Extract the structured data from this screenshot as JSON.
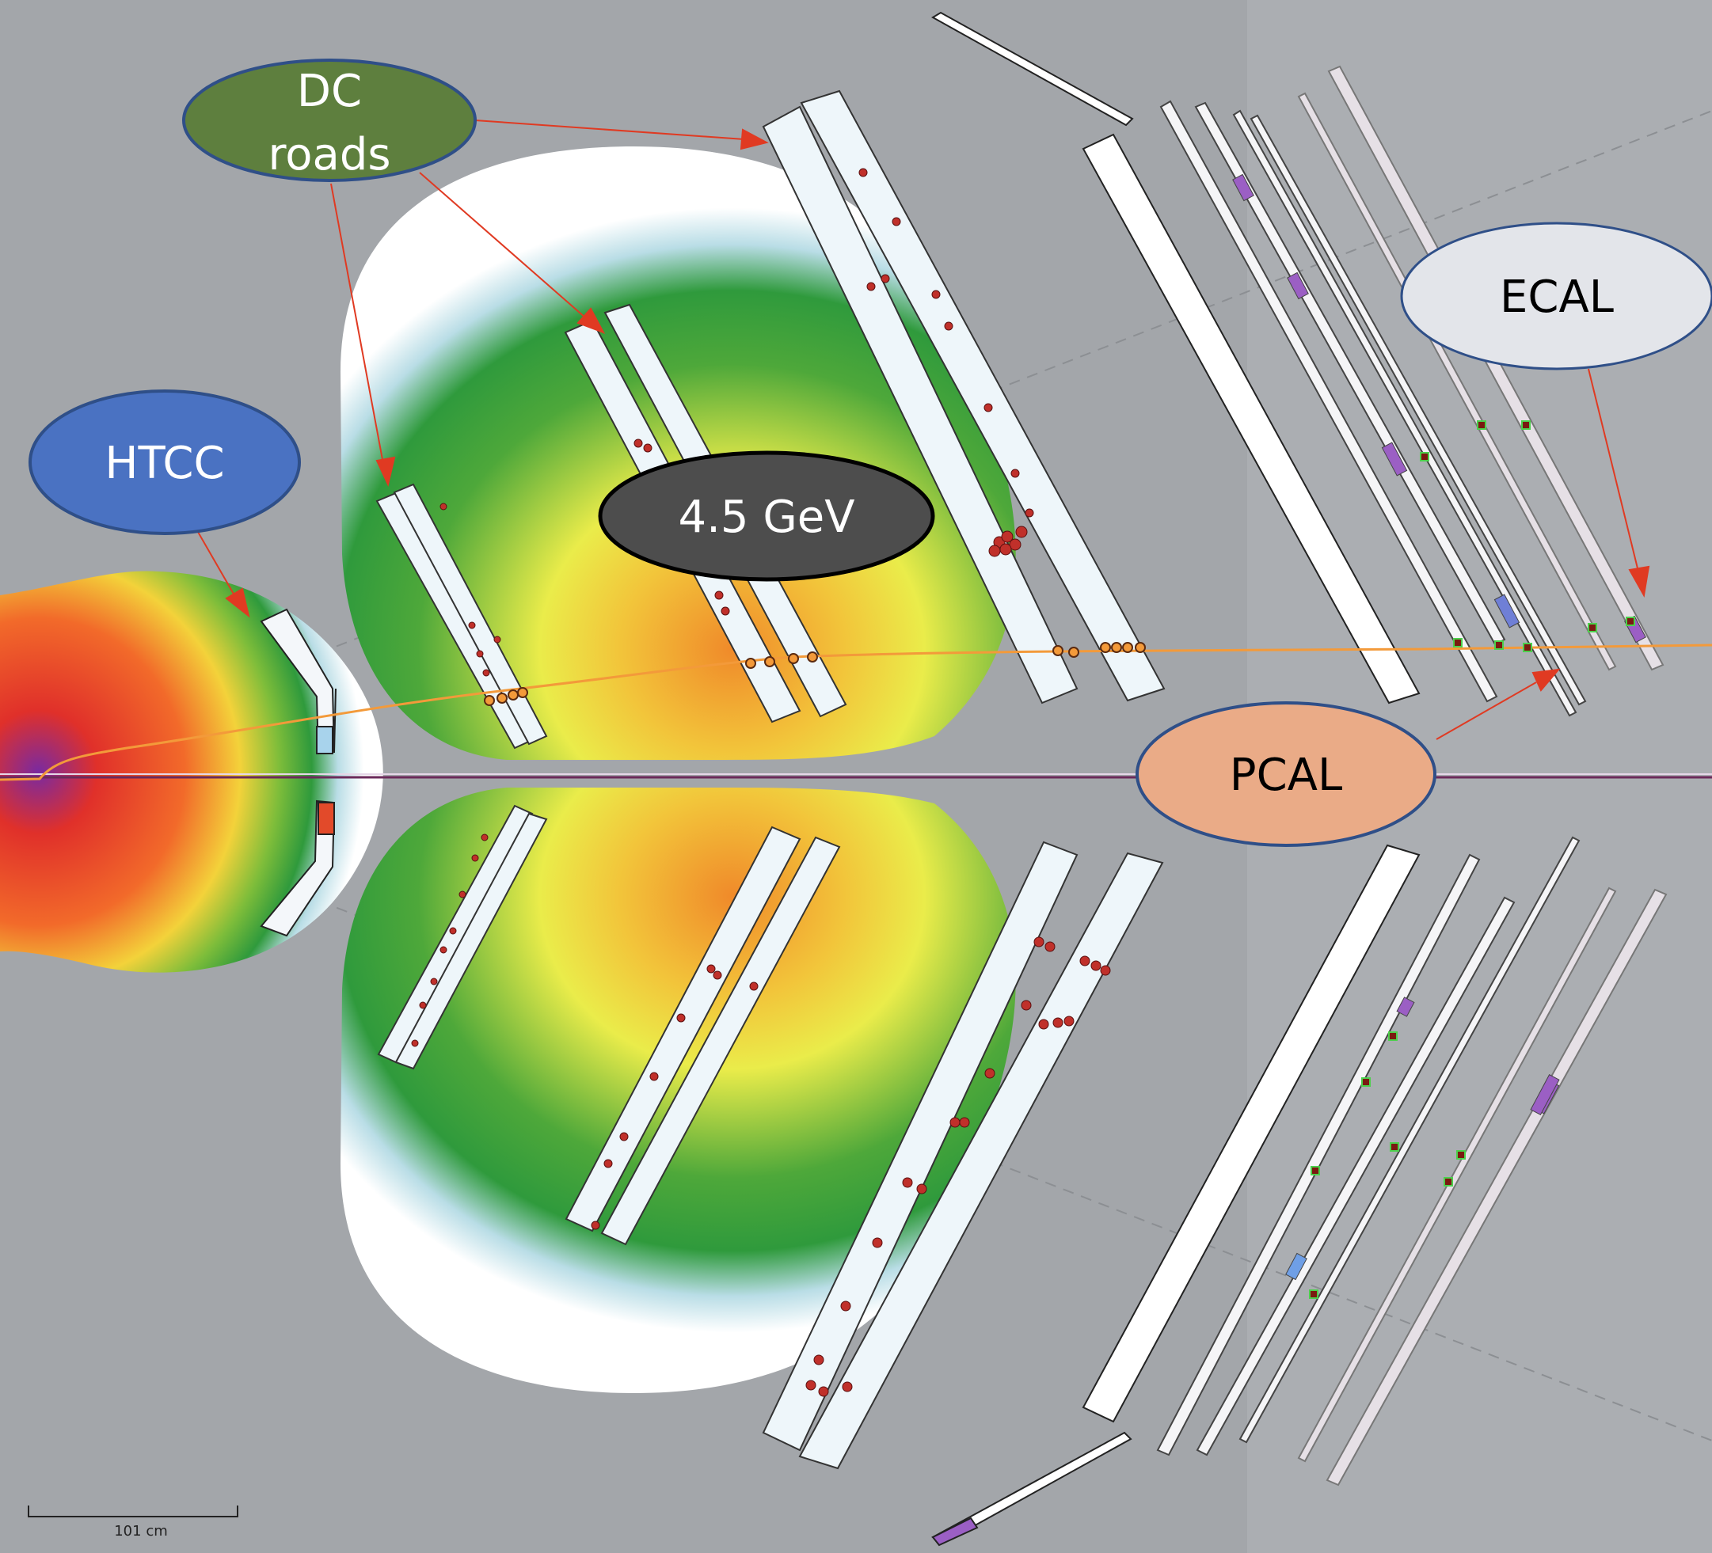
{
  "callouts": {
    "dc_roads": {
      "line1": "DC",
      "line2": "roads",
      "fill": "#5e7f3e",
      "stroke": "#2f4f88"
    },
    "htcc": {
      "label": "HTCC",
      "fill": "#4a72c2",
      "stroke": "#2f4f88"
    },
    "energy": {
      "label": "4.5 GeV",
      "fill": "#4d4d4d",
      "stroke": "#000000"
    },
    "ecal": {
      "label": "ECAL",
      "fill": "#e3e5ea",
      "stroke": "#2f4f88"
    },
    "pcal": {
      "label": "PCAL",
      "fill": "#eaab87",
      "stroke": "#2f4f88"
    }
  },
  "scale_bar": {
    "label": "101 cm"
  },
  "colors": {
    "background": "#a3a6aa",
    "arrow": "#e03a22",
    "track": "#f39a3a",
    "beamline": "#6b2a5a",
    "detector_panel": "#eef6fa",
    "hit": "#c0302a",
    "calorimeter_strip": "#9b5fc4"
  },
  "icons": {
    "arrowhead": "arrowhead-icon",
    "hit_marker": "hit-dot-icon"
  }
}
